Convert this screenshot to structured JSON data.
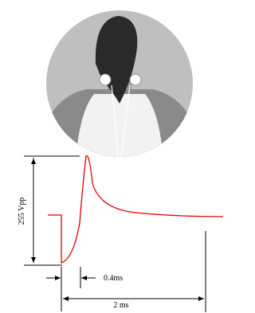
{
  "labels": {
    "amplitude": "255 Vpp",
    "pulse_width": "0.4ms",
    "duration": "2 ms"
  }
}
